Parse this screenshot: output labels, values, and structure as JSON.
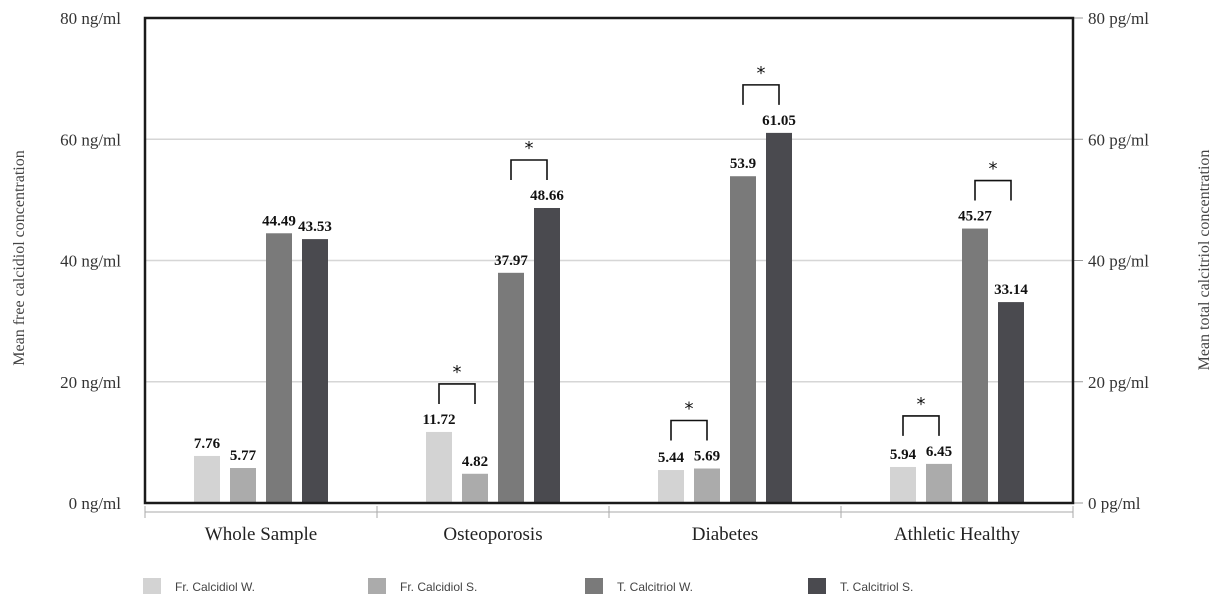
{
  "chart_data": {
    "type": "bar",
    "categories": [
      "Whole Sample",
      "Osteoporosis",
      "Diabetes",
      "Athletic Healthy"
    ],
    "series": [
      {
        "name": "Fr. Calcidiol W.",
        "values": [
          7.76,
          11.72,
          5.44,
          5.94
        ]
      },
      {
        "name": "Fr. Calcidiol S.",
        "values": [
          5.77,
          4.82,
          5.69,
          6.45
        ]
      },
      {
        "name": "T. Calcitriol W.",
        "values": [
          44.49,
          37.97,
          53.9,
          45.27
        ]
      },
      {
        "name": "T. Calcitriol S.",
        "values": [
          43.53,
          48.66,
          61.05,
          33.14
        ]
      }
    ],
    "data_labels": [
      [
        "7.76",
        "5.77",
        "44.49",
        "43.53"
      ],
      [
        "11.72",
        "4.82",
        "37.97",
        "48.66"
      ],
      [
        "5.44",
        "5.69",
        "53.9",
        "61.05"
      ],
      [
        "5.94",
        "6.45",
        "45.27",
        "33.14"
      ]
    ],
    "ylabel": "Mean free calcidiol concentration",
    "y2label": "Mean total calcitriol concentration",
    "ylim": [
      0,
      80
    ],
    "y_ticks": [
      "0 ng/ml",
      "20 ng/ml",
      "40 ng/ml",
      "60 ng/ml",
      "80 ng/ml"
    ],
    "y2_ticks": [
      "0 pg/ml",
      "20 pg/ml",
      "40 pg/ml",
      "60 pg/ml",
      "80 pg/ml"
    ],
    "significance_marker": "*",
    "significance": [
      {
        "category": "Osteoporosis",
        "pair": [
          0,
          1
        ]
      },
      {
        "category": "Osteoporosis",
        "pair": [
          2,
          3
        ]
      },
      {
        "category": "Diabetes",
        "pair": [
          0,
          1
        ]
      },
      {
        "category": "Diabetes",
        "pair": [
          2,
          3
        ]
      },
      {
        "category": "Athletic Healthy",
        "pair": [
          0,
          1
        ]
      },
      {
        "category": "Athletic Healthy",
        "pair": [
          2,
          3
        ]
      }
    ],
    "grid": true,
    "legend_position": "bottom"
  },
  "colors": {
    "series": [
      "#d3d3d3",
      "#ababab",
      "#7a7a7a",
      "#4a4a4f"
    ],
    "grid": "#d6d6d6",
    "frame": "#1a1a1a"
  }
}
